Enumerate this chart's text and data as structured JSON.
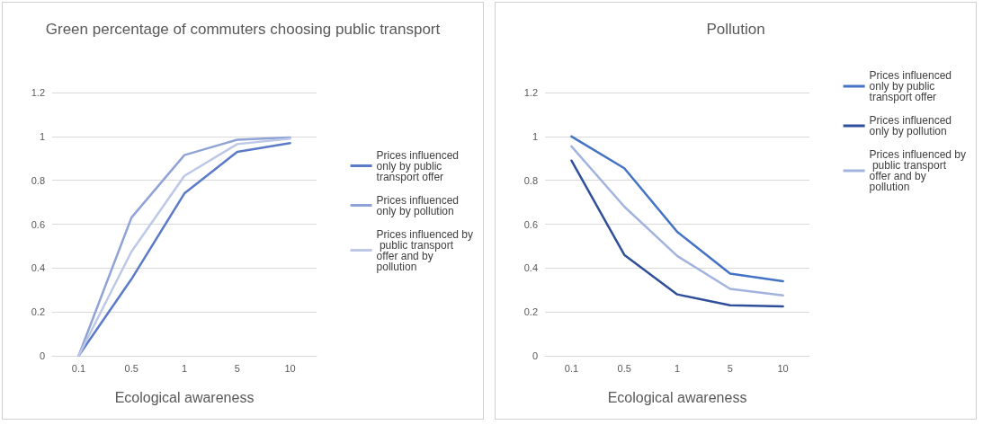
{
  "chart_data": [
    {
      "type": "line",
      "title": "Green percentage of commuters choosing public transport",
      "xlabel": "Ecological awareness",
      "categories": [
        "0.1",
        "0.5",
        "1",
        "5",
        "10"
      ],
      "ylim": [
        0,
        1.2
      ],
      "yticks": [
        0,
        0.2,
        0.4,
        0.6,
        0.8,
        1,
        1.2
      ],
      "grid": "y",
      "legend": "right",
      "marker": "none",
      "series": [
        {
          "name": "Prices influenced only by public transport offer",
          "color": "#5b7bc9",
          "values": [
            0,
            0.35,
            0.74,
            0.93,
            0.97
          ]
        },
        {
          "name": "Prices influenced only by pollution",
          "color": "#8fa3d6",
          "values": [
            0,
            0.63,
            0.915,
            0.985,
            0.995
          ]
        },
        {
          "name": "Prices influenced by public transport offer and by pollution",
          "color": "#bcc8e6",
          "values": [
            0,
            0.475,
            0.82,
            0.965,
            0.99
          ]
        }
      ]
    },
    {
      "type": "line",
      "title": "Pollution",
      "xlabel": "Ecological awareness",
      "categories": [
        "0.1",
        "0.5",
        "1",
        "5",
        "10"
      ],
      "ylim": [
        0,
        1.2
      ],
      "yticks": [
        0,
        0.2,
        0.4,
        0.6,
        0.8,
        1,
        1.2
      ],
      "grid": "y",
      "legend": "top right",
      "marker": "none",
      "series": [
        {
          "name": "Prices influenced only by public transport offer",
          "color": "#4472c4",
          "values": [
            1.0,
            0.855,
            0.565,
            0.375,
            0.34
          ]
        },
        {
          "name": "Prices influenced only by pollution",
          "color": "#2f4f9a",
          "values": [
            0.89,
            0.46,
            0.28,
            0.23,
            0.225
          ]
        },
        {
          "name": "Prices influenced by public transport offer and by pollution",
          "color": "#a2b3de",
          "values": [
            0.955,
            0.68,
            0.455,
            0.305,
            0.275
          ]
        }
      ]
    }
  ]
}
